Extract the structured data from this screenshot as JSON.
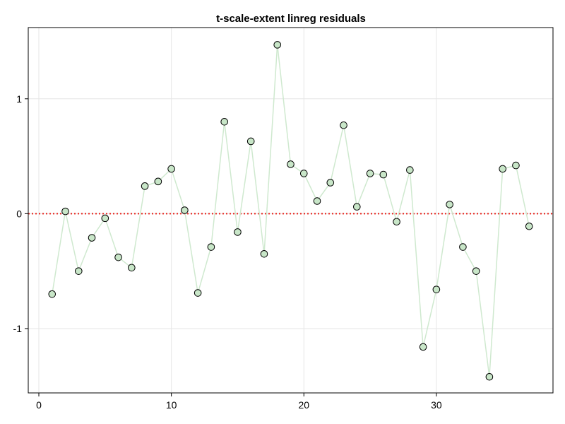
{
  "chart_data": {
    "type": "scatter",
    "title": "t-scale-extent linreg  residuals",
    "xlabel": "",
    "ylabel": "",
    "xlim": [
      -0.8,
      38.8
    ],
    "ylim": [
      -1.56,
      1.62
    ],
    "x_ticks": [
      0,
      10,
      20,
      30
    ],
    "x_tick_labels": [
      "0",
      "10",
      "20",
      "30"
    ],
    "y_ticks": [
      -1,
      0,
      1
    ],
    "y_tick_labels": [
      "-1",
      "0",
      "1"
    ],
    "grid": true,
    "reference_line": {
      "y": 0,
      "style": "dotted",
      "color": "#e8201a"
    },
    "series": [
      {
        "x": [
          1,
          2,
          3,
          4,
          5,
          6,
          7,
          8,
          9,
          10,
          11,
          12,
          13,
          14,
          15,
          16,
          17,
          18,
          19,
          20,
          21,
          22,
          23,
          24,
          25,
          26,
          27,
          28,
          29,
          30,
          31,
          32,
          33,
          34,
          35,
          36,
          37
        ],
        "values": [
          -0.7,
          0.02,
          -0.5,
          -0.21,
          -0.04,
          -0.38,
          -0.47,
          0.24,
          0.28,
          0.39,
          0.03,
          -0.69,
          -0.29,
          0.8,
          -0.16,
          0.63,
          -0.35,
          1.47,
          0.43,
          0.35,
          0.11,
          0.27,
          0.77,
          0.06,
          0.35,
          0.34,
          -0.07,
          0.38,
          -1.16,
          -0.66,
          0.08,
          -0.29,
          -0.5,
          -1.42,
          0.39,
          0.42,
          -0.11
        ],
        "line_color": "#cfe9cf",
        "marker_fill": "#c8e6c8",
        "marker_edge": "#000000"
      }
    ]
  }
}
